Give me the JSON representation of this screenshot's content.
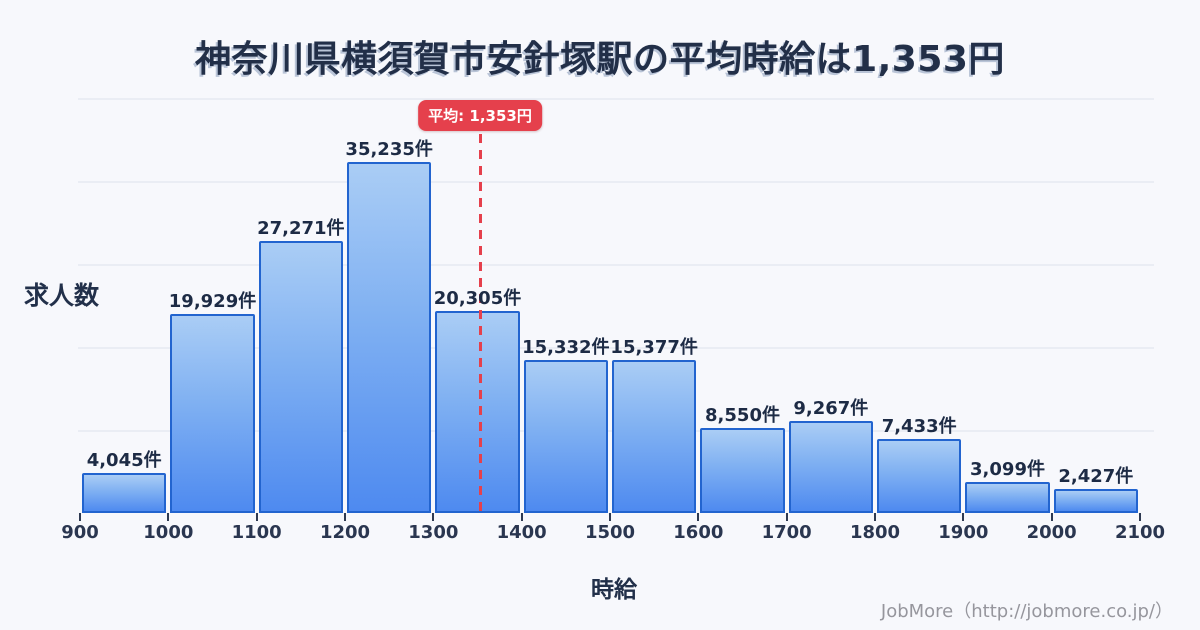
{
  "title": {
    "text": "神奈川県横須賀市安針塚駅の平均時給は1,353円"
  },
  "average": {
    "badge_label": "平均: 1,353円",
    "value": 1353,
    "color": "#e5404c"
  },
  "footer": {
    "credit": "JobMore（http://jobmore.co.jp/）"
  },
  "chart_data": {
    "type": "bar",
    "title": "神奈川県横須賀市安針塚駅の平均時給は1,353円",
    "xlabel": "時給",
    "ylabel": "求人数",
    "unit": "件",
    "x_ticks": [
      900,
      1000,
      1100,
      1200,
      1300,
      1400,
      1500,
      1600,
      1700,
      1800,
      1900,
      2000,
      2100
    ],
    "categories": [
      "900-1000",
      "1000-1100",
      "1100-1200",
      "1200-1300",
      "1300-1400",
      "1400-1500",
      "1500-1600",
      "1600-1700",
      "1700-1800",
      "1800-1900",
      "1900-2000",
      "2000-2100"
    ],
    "values": [
      4045,
      19929,
      27271,
      35235,
      20305,
      15332,
      15377,
      8550,
      9267,
      7433,
      3099,
      2427
    ],
    "bar_labels": [
      "4,045件",
      "19,929件",
      "27,271件",
      "35,235件",
      "20,305件",
      "15,332件",
      "15,377件",
      "8,550件",
      "9,267件",
      "7,433件",
      "3,099件",
      "2,427件"
    ],
    "average_value": 1353,
    "xlim": [
      900,
      2100
    ],
    "ylim": [
      0,
      41500
    ],
    "grid": true,
    "legend": false,
    "colors": {
      "bar_fill_top": "#aacdf5",
      "bar_fill_bottom": "#4e8af0",
      "bar_border": "#2264cf",
      "average_line": "#e5404c",
      "gridline": "#eaedf4",
      "text": "#22304a",
      "background": "#f7f8fc"
    }
  }
}
